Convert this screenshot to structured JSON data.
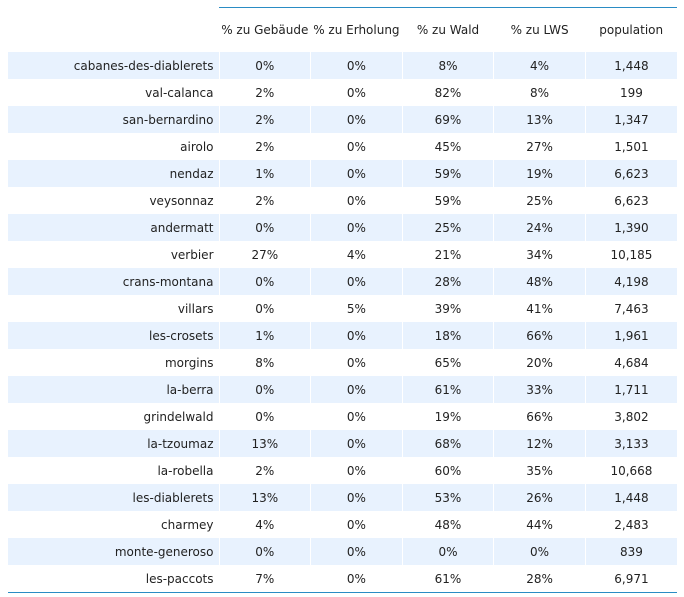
{
  "chart_data": {
    "type": "table",
    "columns": [
      "% zu Gebäude",
      "% zu Erholung",
      "% zu Wald",
      "% zu LWS",
      "population"
    ],
    "rows": [
      {
        "name": "cabanes-des-diablerets",
        "values": [
          "0%",
          "0%",
          "8%",
          "4%",
          "1,448"
        ]
      },
      {
        "name": "val-calanca",
        "values": [
          "2%",
          "0%",
          "82%",
          "8%",
          "199"
        ]
      },
      {
        "name": "san-bernardino",
        "values": [
          "2%",
          "0%",
          "69%",
          "13%",
          "1,347"
        ]
      },
      {
        "name": "airolo",
        "values": [
          "2%",
          "0%",
          "45%",
          "27%",
          "1,501"
        ]
      },
      {
        "name": "nendaz",
        "values": [
          "1%",
          "0%",
          "59%",
          "19%",
          "6,623"
        ]
      },
      {
        "name": "veysonnaz",
        "values": [
          "2%",
          "0%",
          "59%",
          "25%",
          "6,623"
        ]
      },
      {
        "name": "andermatt",
        "values": [
          "0%",
          "0%",
          "25%",
          "24%",
          "1,390"
        ]
      },
      {
        "name": "verbier",
        "values": [
          "27%",
          "4%",
          "21%",
          "34%",
          "10,185"
        ]
      },
      {
        "name": "crans-montana",
        "values": [
          "0%",
          "0%",
          "28%",
          "48%",
          "4,198"
        ]
      },
      {
        "name": "villars",
        "values": [
          "0%",
          "5%",
          "39%",
          "41%",
          "7,463"
        ]
      },
      {
        "name": "les-crosets",
        "values": [
          "1%",
          "0%",
          "18%",
          "66%",
          "1,961"
        ]
      },
      {
        "name": "morgins",
        "values": [
          "8%",
          "0%",
          "65%",
          "20%",
          "4,684"
        ]
      },
      {
        "name": "la-berra",
        "values": [
          "0%",
          "0%",
          "61%",
          "33%",
          "1,711"
        ]
      },
      {
        "name": "grindelwald",
        "values": [
          "0%",
          "0%",
          "19%",
          "66%",
          "3,802"
        ]
      },
      {
        "name": "la-tzoumaz",
        "values": [
          "13%",
          "0%",
          "68%",
          "12%",
          "3,133"
        ]
      },
      {
        "name": "la-robella",
        "values": [
          "2%",
          "0%",
          "60%",
          "35%",
          "10,668"
        ]
      },
      {
        "name": "les-diablerets",
        "values": [
          "13%",
          "0%",
          "53%",
          "26%",
          "1,448"
        ]
      },
      {
        "name": "charmey",
        "values": [
          "4%",
          "0%",
          "48%",
          "44%",
          "2,483"
        ]
      },
      {
        "name": "monte-generoso",
        "values": [
          "0%",
          "0%",
          "0%",
          "0%",
          "839"
        ]
      },
      {
        "name": "les-paccots",
        "values": [
          "7%",
          "0%",
          "61%",
          "28%",
          "6,971"
        ]
      }
    ]
  },
  "style": {
    "stripe_color": "#e8f2fe",
    "rule_color": "#2a8cc4"
  }
}
